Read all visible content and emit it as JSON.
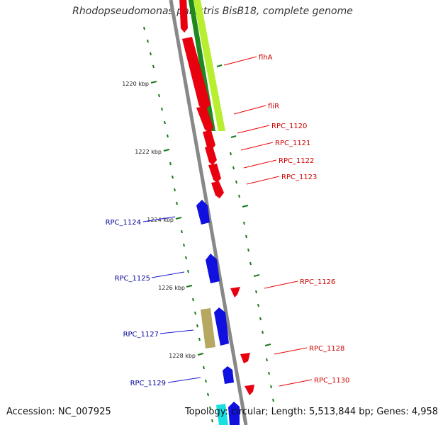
{
  "title": "Rhodopseudomonas palustris BisB18, complete genome",
  "accession": "Accession: NC_007925",
  "summary": "Topology: circular; Length: 5,513,844 bp; Genes: 4,958",
  "colors": {
    "forward": "#e8000f",
    "reverse": "#1010e0",
    "ticks": "#1a7a1a",
    "backbone": "#888888",
    "cog_green_dark": "#1e8a1e",
    "cog_green_light": "#b8ee30",
    "cog_olive": "#b6a860",
    "cyan": "#18e0e0",
    "forward_label": "#cc0000",
    "reverse_label": "#000099"
  },
  "scale_labels": [
    "1220 kbp",
    "1222 kbp",
    "1224 kbp",
    "1226 kbp",
    "1228 kbp"
  ],
  "forward_genes": [
    "flhA",
    "fliR",
    "RPC_1120",
    "RPC_1121",
    "RPC_1122",
    "RPC_1123",
    "RPC_1126",
    "RPC_1128",
    "RPC_1130"
  ],
  "reverse_genes": [
    "RPC_1124",
    "RPC_1125",
    "RPC_1127",
    "RPC_1129"
  ]
}
